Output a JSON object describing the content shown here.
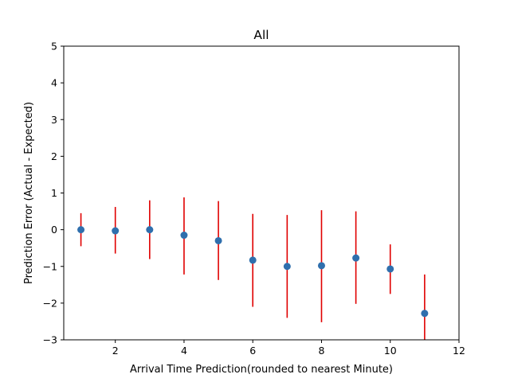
{
  "chart_data": {
    "type": "scatter",
    "title": "All",
    "xlabel": "Arrival Time Prediction(rounded to nearest Minute)",
    "ylabel": "Prediction Error (Actual - Expected)",
    "xlim": [
      0.5,
      12
    ],
    "ylim": [
      -3,
      5
    ],
    "xticks": [
      2,
      4,
      6,
      8,
      10,
      12
    ],
    "yticks": [
      -3,
      -2,
      -1,
      0,
      1,
      2,
      3,
      4,
      5
    ],
    "grid": false,
    "legend": "none",
    "marker_color": "#2f6fad",
    "errorbar_color": "#e00000",
    "points": [
      {
        "x": 1,
        "y": 0.0,
        "lower": -0.45,
        "upper": 0.45
      },
      {
        "x": 2,
        "y": -0.03,
        "lower": -0.65,
        "upper": 0.62
      },
      {
        "x": 3,
        "y": 0.0,
        "lower": -0.8,
        "upper": 0.8
      },
      {
        "x": 4,
        "y": -0.15,
        "lower": -1.22,
        "upper": 0.88
      },
      {
        "x": 5,
        "y": -0.3,
        "lower": -1.37,
        "upper": 0.78
      },
      {
        "x": 6,
        "y": -0.83,
        "lower": -2.1,
        "upper": 0.43
      },
      {
        "x": 7,
        "y": -1.0,
        "lower": -2.4,
        "upper": 0.4
      },
      {
        "x": 8,
        "y": -0.98,
        "lower": -2.52,
        "upper": 0.53
      },
      {
        "x": 9,
        "y": -0.77,
        "lower": -2.02,
        "upper": 0.5
      },
      {
        "x": 10,
        "y": -1.07,
        "lower": -1.75,
        "upper": -0.4
      },
      {
        "x": 11,
        "y": -2.28,
        "lower": -3.0,
        "upper": -1.22
      }
    ]
  }
}
